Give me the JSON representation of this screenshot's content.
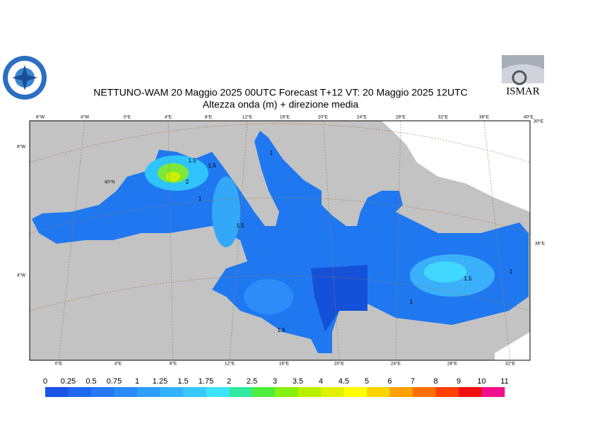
{
  "header": {
    "title": "NETTUNO-WAM  20   Maggio  2025 00UTC Forecast T+12 VT: 20   Maggio  2025 12UTC",
    "subtitle": "Altezza onda (m) + direzione media"
  },
  "logos": {
    "right": "ISMAR"
  },
  "map": {
    "top_labels": [
      "8°W",
      "4°W",
      "0°E",
      "4°E",
      "8°E",
      "12°E",
      "16°E",
      "20°E",
      "24°E",
      "28°E",
      "32°E",
      "36°E",
      "40°E"
    ],
    "bottom_labels": [
      "0°E",
      "4°E",
      "8°E",
      "12°E",
      "16°E",
      "20°E",
      "24°E",
      "28°E",
      "32°E"
    ],
    "left_labels": [
      "8°W",
      "4°W"
    ],
    "right_labels": [
      "30°E",
      "36°E"
    ],
    "inner_labels": [
      "40°N"
    ],
    "contour_labels": [
      "1.5",
      "2",
      "1.5",
      "1",
      "1.5",
      "1",
      "1.5",
      "1",
      "1.5",
      "1"
    ]
  },
  "colorbar": {
    "ticks": [
      0,
      0.25,
      0.5,
      0.75,
      1,
      1.25,
      1.5,
      1.75,
      2,
      2.5,
      3,
      3.5,
      4,
      4.5,
      5,
      6,
      7,
      8,
      9,
      10,
      11
    ],
    "colors": [
      "#1a55e6",
      "#1f68f0",
      "#2478f5",
      "#2a8af8",
      "#2f9efa",
      "#34b2fc",
      "#38c8fe",
      "#3ee2ff",
      "#30eaa0",
      "#50ee40",
      "#88f010",
      "#b8f000",
      "#e0f000",
      "#ffff00",
      "#ffd400",
      "#ffa000",
      "#ff7000",
      "#ff4000",
      "#f01010",
      "#f0108c"
    ]
  }
}
